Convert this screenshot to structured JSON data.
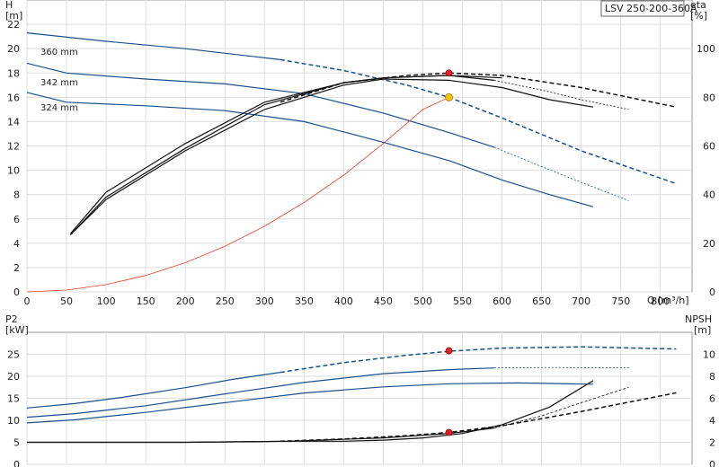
{
  "chart_data": [
    {
      "type": "line",
      "panel": "top",
      "title": "LSV 250-200-360A",
      "xlabel": "Q [m³/h]",
      "x_unit": "Q [m³/h]",
      "ylabel_left": [
        "H",
        "[m]"
      ],
      "ylabel_right": [
        "eta",
        "[%]"
      ],
      "xlim": [
        0,
        840
      ],
      "ylim_left": [
        0,
        24
      ],
      "ylim_right": [
        0,
        120
      ],
      "x_ticks": [
        0,
        50,
        100,
        150,
        200,
        250,
        300,
        350,
        400,
        450,
        500,
        550,
        600,
        650,
        700,
        750,
        800
      ],
      "y_ticks_left": [
        0,
        2,
        4,
        6,
        8,
        10,
        12,
        14,
        16,
        18,
        20,
        22
      ],
      "y_ticks_right": [
        0,
        20,
        40,
        60,
        80,
        100
      ],
      "grid": true,
      "head_curves": [
        {
          "name": "360 mm",
          "color": "#1a4f8a",
          "width": 1.2,
          "points": [
            [
              0,
              21.3
            ],
            [
              100,
              20.6
            ],
            [
              200,
              20.0
            ],
            [
              280,
              19.4
            ],
            [
              320,
              19.1
            ]
          ]
        },
        {
          "name": "360 mm",
          "color": "#1a4f8a",
          "width": 1.5,
          "dash": "5,3",
          "points": [
            [
              320,
              19.1
            ],
            [
              400,
              18.2
            ],
            [
              480,
              17.0
            ],
            [
              533,
              16.0
            ],
            [
              600,
              14.3
            ],
            [
              700,
              11.6
            ],
            [
              820,
              8.9
            ]
          ]
        },
        {
          "name": "342 mm",
          "color": "#1a4f8a",
          "width": 1.2,
          "points": [
            [
              0,
              18.8
            ],
            [
              50,
              18.0
            ],
            [
              150,
              17.5
            ],
            [
              250,
              17.1
            ],
            [
              350,
              16.3
            ],
            [
              450,
              14.7
            ],
            [
              533,
              13.1
            ],
            [
              590,
              11.9
            ]
          ]
        },
        {
          "name": "342 mm",
          "color": "#1a4f8a",
          "width": 0.8,
          "dash": "2,2",
          "points": [
            [
              590,
              11.9
            ],
            [
              650,
              10.3
            ],
            [
              700,
              9.0
            ],
            [
              760,
              7.5
            ]
          ]
        },
        {
          "name": "324 mm",
          "color": "#1a4f8a",
          "width": 1.2,
          "points": [
            [
              0,
              16.4
            ],
            [
              50,
              15.6
            ],
            [
              150,
              15.3
            ],
            [
              250,
              14.9
            ],
            [
              350,
              14.0
            ],
            [
              450,
              12.3
            ],
            [
              533,
              10.8
            ],
            [
              600,
              9.2
            ],
            [
              660,
              8.0
            ],
            [
              715,
              7.0
            ]
          ]
        }
      ],
      "eta_curves": [
        {
          "color": "#111111",
          "width": 1.2,
          "points": [
            [
              55,
              23.5
            ],
            [
              100,
              38
            ],
            [
              200,
              58
            ],
            [
              300,
              75
            ],
            [
              400,
              85
            ],
            [
              450,
              87.5
            ],
            [
              533,
              87.0
            ],
            [
              600,
              84
            ],
            [
              660,
              79
            ],
            [
              715,
              76
            ]
          ]
        },
        {
          "color": "#111111",
          "width": 1.2,
          "points": [
            [
              55,
              23.5
            ],
            [
              100,
              39
            ],
            [
              200,
              59
            ],
            [
              300,
              77
            ],
            [
              400,
              86
            ],
            [
              450,
              88
            ],
            [
              533,
              89.0
            ],
            [
              590,
              87
            ]
          ]
        },
        {
          "color": "#111111",
          "width": 0.8,
          "dash": "2,2",
          "points": [
            [
              590,
              87
            ],
            [
              650,
              83
            ],
            [
              700,
              79
            ],
            [
              760,
              75
            ]
          ]
        },
        {
          "color": "#111111",
          "width": 1.2,
          "points": [
            [
              55,
              24
            ],
            [
              100,
              41
            ],
            [
              200,
              61
            ],
            [
              300,
              78
            ],
            [
              400,
              86
            ],
            [
              450,
              88
            ],
            [
              533,
              89.0
            ],
            [
              600,
              88
            ]
          ]
        },
        {
          "color": "#111111",
          "width": 1.5,
          "dash": "5,3",
          "points": [
            [
              320,
              78
            ],
            [
              400,
              86
            ],
            [
              480,
              89
            ],
            [
              533,
              90.0
            ],
            [
              600,
              89
            ],
            [
              700,
              84
            ],
            [
              820,
              76
            ]
          ]
        }
      ],
      "system_curve": {
        "color": "#e8402a",
        "points": [
          [
            0,
            0
          ],
          [
            50,
            0.15
          ],
          [
            100,
            0.6
          ],
          [
            150,
            1.35
          ],
          [
            200,
            2.4
          ],
          [
            250,
            3.75
          ],
          [
            300,
            5.4
          ],
          [
            350,
            7.35
          ],
          [
            400,
            9.6
          ],
          [
            450,
            12.2
          ],
          [
            500,
            15.0
          ],
          [
            533,
            16.0
          ]
        ]
      },
      "duty_point": {
        "x": 533,
        "y": 16.0,
        "color": "#f5c400"
      },
      "eta_point": {
        "x": 533,
        "y": 90,
        "color": "#e02020"
      }
    },
    {
      "type": "line",
      "panel": "bottom",
      "xlim": [
        0,
        840
      ],
      "ylabel_left": [
        "P2",
        "[kW]"
      ],
      "ylabel_right": [
        "NPSH",
        "[m]"
      ],
      "ylim_left": [
        0,
        30
      ],
      "ylim_right": [
        0,
        12
      ],
      "y_ticks_left": [
        0,
        5,
        10,
        15,
        20,
        25
      ],
      "y_ticks_right": [
        0,
        2,
        4,
        6,
        8,
        10
      ],
      "grid": true,
      "power_curves": [
        {
          "color": "#1a4f8a",
          "width": 1.2,
          "points": [
            [
              0,
              12.8
            ],
            [
              60,
              13.8
            ],
            [
              120,
              15.2
            ],
            [
              200,
              17.4
            ],
            [
              260,
              19.3
            ],
            [
              320,
              20.9
            ]
          ]
        },
        {
          "color": "#1a4f8a",
          "width": 1.5,
          "dash": "5,3",
          "points": [
            [
              320,
              20.9
            ],
            [
              400,
              23.1
            ],
            [
              480,
              24.8
            ],
            [
              533,
              25.7
            ],
            [
              600,
              26.4
            ],
            [
              700,
              26.7
            ],
            [
              820,
              26.2
            ]
          ]
        },
        {
          "color": "#1a4f8a",
          "width": 1.2,
          "points": [
            [
              0,
              10.7
            ],
            [
              60,
              11.5
            ],
            [
              150,
              13.3
            ],
            [
              250,
              16.0
            ],
            [
              350,
              18.6
            ],
            [
              450,
              20.6
            ],
            [
              533,
              21.5
            ],
            [
              590,
              21.9
            ]
          ]
        },
        {
          "color": "#1a4f8a",
          "width": 0.8,
          "dash": "2,2",
          "points": [
            [
              590,
              21.9
            ],
            [
              660,
              22.0
            ],
            [
              760,
              21.9
            ]
          ]
        },
        {
          "color": "#1a4f8a",
          "width": 1.2,
          "points": [
            [
              0,
              9.4
            ],
            [
              60,
              10.1
            ],
            [
              150,
              11.8
            ],
            [
              250,
              14.0
            ],
            [
              350,
              16.2
            ],
            [
              450,
              17.6
            ],
            [
              533,
              18.3
            ],
            [
              620,
              18.5
            ],
            [
              715,
              18.2
            ]
          ]
        }
      ],
      "npsh_curves": [
        {
          "color": "#111111",
          "width": 1.2,
          "points": [
            [
              0,
              2.0
            ],
            [
              200,
              2.0
            ],
            [
              330,
              2.1
            ],
            [
              400,
              2.1
            ],
            [
              450,
              2.2
            ],
            [
              500,
              2.4
            ],
            [
              550,
              2.8
            ],
            [
              600,
              3.6
            ],
            [
              660,
              5.2
            ],
            [
              715,
              7.6
            ]
          ]
        },
        {
          "color": "#111111",
          "width": 1.2,
          "points": [
            [
              0,
              2.0
            ],
            [
              200,
              2.0
            ],
            [
              330,
              2.1
            ],
            [
              450,
              2.4
            ],
            [
              533,
              2.8
            ],
            [
              590,
              3.3
            ]
          ]
        },
        {
          "color": "#111111",
          "width": 0.8,
          "dash": "3,2",
          "points": [
            [
              590,
              3.3
            ],
            [
              650,
              4.4
            ],
            [
              700,
              5.6
            ],
            [
              760,
              7.0
            ]
          ]
        },
        {
          "color": "#111111",
          "width": 1.5,
          "dash": "5,3",
          "points": [
            [
              320,
              2.1
            ],
            [
              400,
              2.3
            ],
            [
              480,
              2.6
            ],
            [
              533,
              2.9
            ],
            [
              600,
              3.5
            ],
            [
              700,
              4.8
            ],
            [
              820,
              6.5
            ]
          ]
        }
      ],
      "power_point": {
        "x": 533,
        "y": 25.8,
        "color": "#e02020"
      },
      "npsh_point": {
        "x": 533,
        "y": 2.9,
        "color": "#e02020"
      }
    }
  ]
}
